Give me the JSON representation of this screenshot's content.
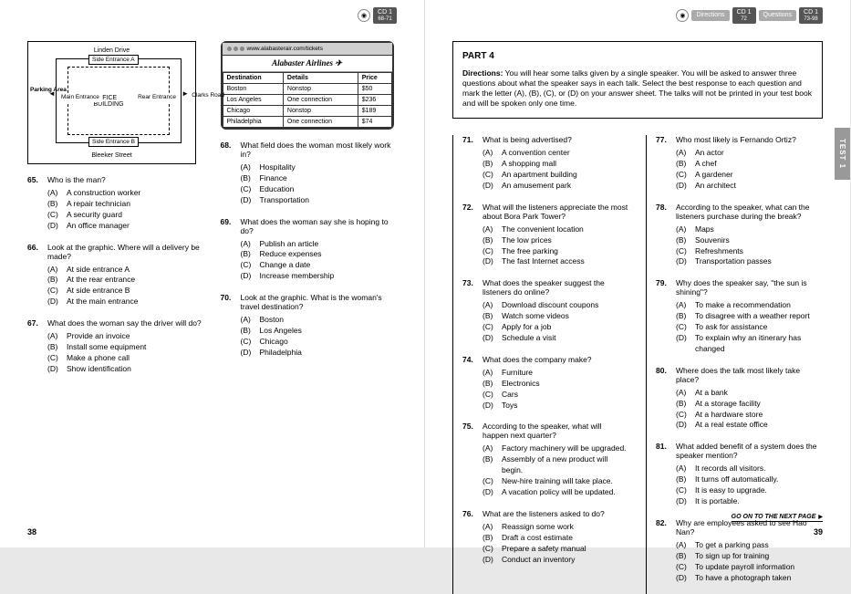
{
  "left": {
    "cd": {
      "label": "CD 1",
      "range": "68-71"
    },
    "map": {
      "streets": {
        "top": "Linden Drive",
        "bottom": "Bleeker Street",
        "right": "Clarks Road"
      },
      "labels": {
        "sideA": "Side Entrance A",
        "office": "OFFICE BUILDING",
        "main": "Main Entrance",
        "rear": "Rear Entrance",
        "sideB": "Side Entrance B",
        "parking": "Parking Area"
      }
    },
    "browser": {
      "url": "www.alabasterair.com/tickets",
      "airline": "Alabaster Airlines",
      "headers": [
        "Destination",
        "Details",
        "Price"
      ],
      "rows": [
        [
          "Boston",
          "Nonstop",
          "$50"
        ],
        [
          "Los Angeles",
          "One connection",
          "$236"
        ],
        [
          "Chicago",
          "Nonstop",
          "$189"
        ],
        [
          "Philadelphia",
          "One connection",
          "$74"
        ]
      ]
    },
    "questions_left": [
      {
        "n": "65.",
        "t": "Who is the man?",
        "o": [
          "A construction worker",
          "A repair technician",
          "A security guard",
          "An office manager"
        ]
      },
      {
        "n": "66.",
        "t": "Look at the graphic. Where will a delivery be made?",
        "o": [
          "At side entrance A",
          "At the rear entrance",
          "At side entrance B",
          "At the main entrance"
        ]
      },
      {
        "n": "67.",
        "t": "What does the woman say the driver will do?",
        "o": [
          "Provide an invoice",
          "Install some equipment",
          "Make a phone call",
          "Show identification"
        ]
      }
    ],
    "questions_right": [
      {
        "n": "68.",
        "t": "What field does the woman most likely work in?",
        "o": [
          "Hospitality",
          "Finance",
          "Education",
          "Transportation"
        ]
      },
      {
        "n": "69.",
        "t": "What does the woman say she is hoping to do?",
        "o": [
          "Publish an article",
          "Reduce expenses",
          "Change a date",
          "Increase membership"
        ]
      },
      {
        "n": "70.",
        "t": "Look at the graphic. What is the woman's travel destination?",
        "o": [
          "Boston",
          "Los Angeles",
          "Chicago",
          "Philadelphia"
        ]
      }
    ],
    "pagenum": "38"
  },
  "right": {
    "cd": [
      {
        "label": "Directions",
        "range": "",
        "light": true
      },
      {
        "label": "CD 1",
        "range": "72"
      },
      {
        "label": "Questions",
        "range": "",
        "light": true
      },
      {
        "label": "CD 1",
        "range": "73-98"
      }
    ],
    "part": {
      "title": "PART 4",
      "dir_label": "Directions:",
      "dir_text": " You will hear some talks given by a single speaker. You will be asked to answer three questions about what the speaker says in each talk. Select the best response to each question and mark the letter (A), (B), (C), or (D) on your answer sheet. The talks will not be printed in your test book and will be spoken only one time."
    },
    "test_tab": "TEST 1",
    "col1": [
      {
        "n": "71.",
        "t": "What is being advertised?",
        "o": [
          "A convention center",
          "A shopping mall",
          "An apartment building",
          "An amusement park"
        ]
      },
      {
        "n": "72.",
        "t": "What will the listeners appreciate the most about Bora Park Tower?",
        "o": [
          "The convenient location",
          "The low prices",
          "The free parking",
          "The fast Internet access"
        ]
      },
      {
        "n": "73.",
        "t": "What does the speaker suggest the listeners do online?",
        "o": [
          "Download discount coupons",
          "Watch some videos",
          "Apply for a job",
          "Schedule a visit"
        ]
      },
      {
        "n": "74.",
        "t": "What does the company make?",
        "o": [
          "Furniture",
          "Electronics",
          "Cars",
          "Toys"
        ]
      },
      {
        "n": "75.",
        "t": "According to the speaker, what will happen next quarter?",
        "o": [
          "Factory machinery will be upgraded.",
          "Assembly of a new product will begin.",
          "New-hire training will take place.",
          "A vacation policy will be updated."
        ]
      },
      {
        "n": "76.",
        "t": "What are the listeners asked to do?",
        "o": [
          "Reassign some work",
          "Draft a cost estimate",
          "Prepare a safety manual",
          "Conduct an inventory"
        ]
      }
    ],
    "col2": [
      {
        "n": "77.",
        "t": "Who most likely is Fernando Ortiz?",
        "o": [
          "An actor",
          "A chef",
          "A gardener",
          "An architect"
        ]
      },
      {
        "n": "78.",
        "t": "According to the speaker, what can the listeners purchase during the break?",
        "o": [
          "Maps",
          "Souvenirs",
          "Refreshments",
          "Transportation passes"
        ]
      },
      {
        "n": "79.",
        "t": "Why does the speaker say, \"the sun is shining\"?",
        "o": [
          "To make a recommendation",
          "To disagree with a weather report",
          "To ask for assistance",
          "To explain why an itinerary has changed"
        ]
      },
      {
        "n": "80.",
        "t": "Where does the talk most likely take place?",
        "o": [
          "At a bank",
          "At a storage facility",
          "At a hardware store",
          "At a real estate office"
        ]
      },
      {
        "n": "81.",
        "t": "What added benefit of a system does the speaker mention?",
        "o": [
          "It records all visitors.",
          "It turns off automatically.",
          "It is easy to upgrade.",
          "It is portable."
        ]
      },
      {
        "n": "82.",
        "t": "Why are employees asked to see Hao Nan?",
        "o": [
          "To get a parking pass",
          "To sign up for training",
          "To update payroll information",
          "To have a photograph taken"
        ]
      }
    ],
    "goon": "GO ON TO THE NEXT PAGE",
    "pagenum": "39"
  },
  "letters": [
    "(A)",
    "(B)",
    "(C)",
    "(D)"
  ]
}
